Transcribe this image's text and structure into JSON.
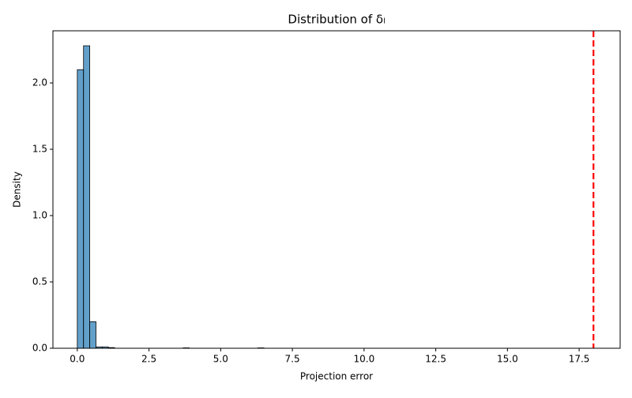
{
  "chart_data": {
    "type": "histogram",
    "title": "Distribution of δₗ",
    "x_label": "Projection error",
    "y_label": "Density",
    "bins": [
      0,
      0.217,
      0.434,
      0.651,
      0.868,
      1.085,
      1.302,
      1.519,
      1.736,
      1.953,
      2.17,
      2.387,
      2.604,
      2.821,
      3.038,
      3.255,
      3.472,
      3.689,
      3.906,
      4.123,
      4.34,
      4.557,
      4.774,
      4.991,
      5.208,
      5.425,
      5.642,
      5.859,
      6.076,
      6.293,
      6.51
    ],
    "values": [
      2.1,
      2.28,
      0.2,
      0.01,
      0.01,
      0.005,
      0,
      0,
      0,
      0,
      0,
      0,
      0,
      0,
      0,
      0,
      0,
      0.003,
      0,
      0,
      0,
      0,
      0,
      0,
      0,
      0,
      0,
      0,
      0,
      0.003
    ],
    "color": "#1f77b4",
    "vline": {
      "value": 18,
      "color": "#ff0000"
    },
    "xlim": [
      -0.85,
      18.93
    ],
    "ylim": [
      0,
      2.393
    ],
    "xticks": [
      {
        "value": 0,
        "label": "0.0"
      },
      {
        "value": 2.5,
        "label": "2.5"
      },
      {
        "value": 5,
        "label": "5.0"
      },
      {
        "value": 7.5,
        "label": "7.5"
      },
      {
        "value": 10,
        "label": "10.0"
      },
      {
        "value": 12.5,
        "label": "12.5"
      },
      {
        "value": 15,
        "label": "15.0"
      },
      {
        "value": 17.5,
        "label": "17.5"
      }
    ],
    "yticks": [
      {
        "value": 0,
        "label": "0.0"
      },
      {
        "value": 0.5,
        "label": "0.5"
      },
      {
        "value": 1,
        "label": "1.0"
      },
      {
        "value": 1.5,
        "label": "1.5"
      },
      {
        "value": 2,
        "label": "2.0"
      }
    ]
  }
}
